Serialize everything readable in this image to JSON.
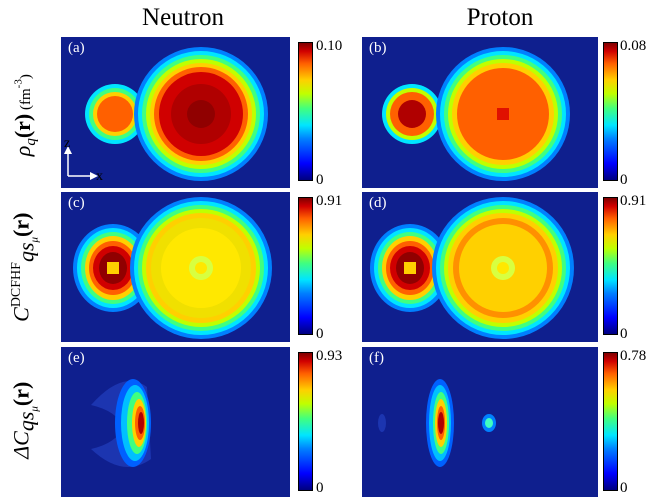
{
  "columns": [
    "Neutron",
    "Proton"
  ],
  "row_labels": [
    {
      "symbol": "ρ",
      "sub": "q",
      "arg": "(r)",
      "unit": " (fm",
      "unit_sup": "-3",
      "unit_end": ")"
    },
    {
      "symbol": "C",
      "sub": "qs",
      "subsub": "μ",
      "sup": "DCFHF",
      "arg": "(r)"
    },
    {
      "symbol": "ΔC",
      "sub": "qs",
      "subsub": "μ",
      "arg": "(r)"
    }
  ],
  "axes": {
    "z": "z",
    "x": "x"
  },
  "panels": [
    {
      "tag": "(a)",
      "cmax": "0.10",
      "cmin": "0"
    },
    {
      "tag": "(b)",
      "cmax": "0.08",
      "cmin": "0"
    },
    {
      "tag": "(c)",
      "cmax": "0.91",
      "cmin": "0"
    },
    {
      "tag": "(d)",
      "cmax": "0.91",
      "cmin": "0"
    },
    {
      "tag": "(e)",
      "cmax": "0.93",
      "cmin": "0"
    },
    {
      "tag": "(f)",
      "cmax": "0.78",
      "cmin": "0"
    }
  ],
  "colormap": [
    "#0f1f8e",
    "#0000ff",
    "#0080ff",
    "#00e5ff",
    "#40ff80",
    "#c0ff00",
    "#ffd000",
    "#ff6000",
    "#d00000",
    "#800000"
  ]
}
